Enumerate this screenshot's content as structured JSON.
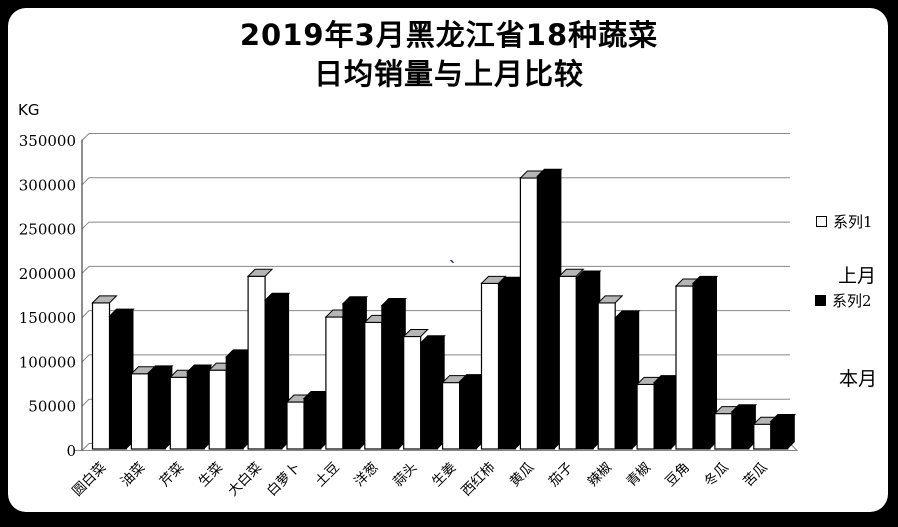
{
  "title": {
    "line1": "2019年3月黑龙江省18种蔬菜",
    "line2": "日均销量与上月比较"
  },
  "y_axis": {
    "unit_label": "KG",
    "tick_labels": [
      "0",
      "50000",
      "100000",
      "150000",
      "200000",
      "250000",
      "300000",
      "350000"
    ]
  },
  "legend": {
    "series1_label": "系列1",
    "series1_sublabel": "上月",
    "series2_label": "系列2",
    "series2_sublabel": "本月"
  },
  "annotation": {
    "mark": "`"
  },
  "colors": {
    "background": "#000000",
    "panel": "#ffffff",
    "gridline": "#888888",
    "series1_fill": "#ffffff",
    "series1_cap": "#b5b5b5",
    "series2_fill": "#000000",
    "text": "#000000"
  },
  "chart_data": {
    "type": "bar",
    "style": "3d-column",
    "title": "2019年3月黑龙江省18种蔬菜 日均销量与上月比较",
    "xlabel": "",
    "ylabel": "KG",
    "ylim": [
      0,
      350000
    ],
    "ytick_step": 50000,
    "grid": true,
    "legend_position": "right",
    "categories": [
      "圆白菜",
      "油菜",
      "芹菜",
      "生菜",
      "大白菜",
      "白萝卜",
      "土豆",
      "洋葱",
      "蒜头",
      "生姜",
      "西红柿",
      "黄瓜",
      "茄子",
      "辣椒",
      "青椒",
      "豆角",
      "冬瓜",
      "苦瓜"
    ],
    "series": [
      {
        "name": "系列1",
        "alias": "上月",
        "color": "#ffffff",
        "values": [
          165000,
          85000,
          81000,
          89000,
          195000,
          53000,
          149000,
          143000,
          127000,
          75000,
          187000,
          306000,
          195000,
          165000,
          73000,
          184000,
          40000,
          28000
        ]
      },
      {
        "name": "系列2",
        "alias": "本月",
        "color": "#000000",
        "values": [
          150000,
          86000,
          87000,
          104000,
          168000,
          57000,
          164000,
          162000,
          120000,
          76000,
          186000,
          308000,
          193000,
          148000,
          75000,
          187000,
          42000,
          31000
        ]
      }
    ]
  }
}
